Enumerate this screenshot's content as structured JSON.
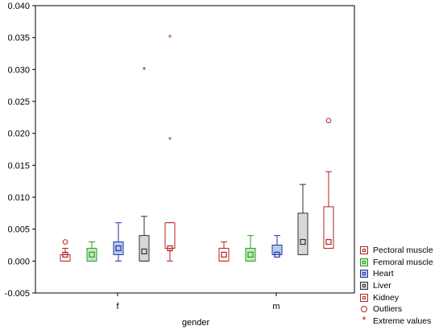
{
  "chart_data": {
    "type": "box",
    "xlabel": "gender",
    "ylabel": "",
    "ylim": [
      -0.005,
      0.04
    ],
    "yticks": [
      "-0.005",
      "0.000",
      "0.005",
      "0.010",
      "0.015",
      "0.020",
      "0.025",
      "0.030",
      "0.035",
      "0.040"
    ],
    "ytick_values": [
      -0.005,
      0.0,
      0.005,
      0.01,
      0.015,
      0.02,
      0.025,
      0.03,
      0.035,
      0.04
    ],
    "categories": [
      "f",
      "m"
    ],
    "grid": false,
    "legend_position": "bottom-right, outside plot",
    "series": [
      {
        "name": "Pectoral muscle",
        "edge": "#b22222",
        "fill": "#ffffff",
        "boxes": [
          {
            "q1": 0.0,
            "median": 0.001,
            "q3": 0.001,
            "min": 0.0,
            "max": 0.002,
            "outliers": [
              0.003
            ],
            "extremes": []
          },
          {
            "q1": 0.0,
            "median": 0.001,
            "q3": 0.002,
            "min": 0.0,
            "max": 0.003,
            "outliers": [],
            "extremes": []
          }
        ]
      },
      {
        "name": "Femoral muscle",
        "edge": "#22a022",
        "fill": "#c8e6c0",
        "boxes": [
          {
            "q1": 0.0,
            "median": 0.001,
            "q3": 0.002,
            "min": 0.0,
            "max": 0.003,
            "outliers": [],
            "extremes": []
          },
          {
            "q1": 0.0,
            "median": 0.001,
            "q3": 0.002,
            "min": 0.0,
            "max": 0.004,
            "outliers": [],
            "extremes": []
          }
        ]
      },
      {
        "name": "Heart",
        "edge": "#2233aa",
        "fill": "#b8cce8",
        "boxes": [
          {
            "q1": 0.001,
            "median": 0.002,
            "q3": 0.003,
            "min": 0.0,
            "max": 0.006,
            "outliers": [],
            "extremes": []
          },
          {
            "q1": 0.001,
            "median": 0.001,
            "q3": 0.0025,
            "min": 0.001,
            "max": 0.004,
            "outliers": [],
            "extremes": []
          }
        ]
      },
      {
        "name": "Liver",
        "edge": "#333333",
        "fill": "#d8d8d8",
        "boxes": [
          {
            "q1": 0.0,
            "median": 0.0015,
            "q3": 0.004,
            "min": 0.0,
            "max": 0.007,
            "outliers": [],
            "extremes": [
              0.03
            ]
          },
          {
            "q1": 0.001,
            "median": 0.003,
            "q3": 0.0075,
            "min": 0.001,
            "max": 0.012,
            "outliers": [],
            "extremes": []
          }
        ]
      },
      {
        "name": "Kidney",
        "edge": "#b22222",
        "fill": "#ffffff",
        "boxes": [
          {
            "q1": 0.002,
            "median": 0.002,
            "q3": 0.006,
            "min": 0.0,
            "max": 0.006,
            "outliers": [],
            "extremes": [
              0.019,
              0.035
            ]
          },
          {
            "q1": 0.002,
            "median": 0.003,
            "q3": 0.0085,
            "min": 0.002,
            "max": 0.014,
            "outliers": [
              0.022
            ],
            "extremes": []
          }
        ]
      }
    ],
    "legend_items": [
      {
        "label": "Pectoral muscle",
        "kind": "box",
        "edge": "#b22222",
        "fill": "#ffffff"
      },
      {
        "label": "Femoral muscle",
        "kind": "box",
        "edge": "#22a022",
        "fill": "#c8e6c0"
      },
      {
        "label": "Heart",
        "kind": "box",
        "edge": "#2233aa",
        "fill": "#b8cce8"
      },
      {
        "label": "Liver",
        "kind": "box",
        "edge": "#333333",
        "fill": "#d8d8d8"
      },
      {
        "label": "Kidney",
        "kind": "box",
        "edge": "#b22222",
        "fill": "#ffffff"
      },
      {
        "label": "Outliers",
        "kind": "circle",
        "edge": "#b22222",
        "fill": "#ffffff"
      },
      {
        "label": "Extreme values",
        "kind": "star",
        "edge": "#b22222",
        "fill": "#ffffff"
      }
    ]
  }
}
